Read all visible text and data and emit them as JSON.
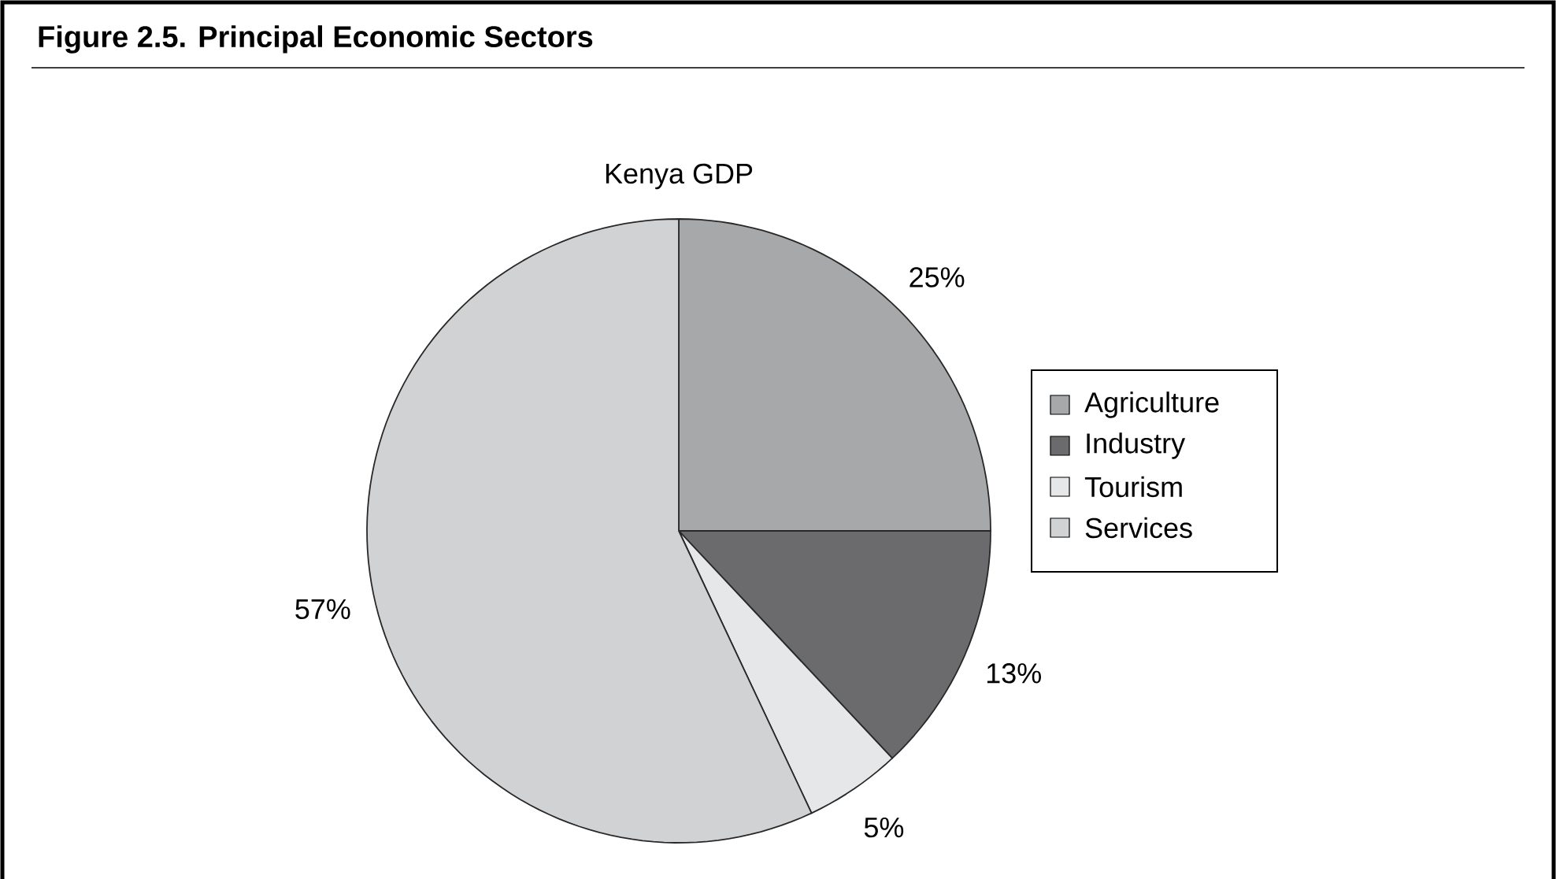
{
  "chart_data": {
    "type": "pie",
    "title": "Figure 2.5.  Principal Economic Sectors",
    "subtitle": "Kenya GDP",
    "categories": [
      "Agriculture",
      "Industry",
      "Tourism",
      "Services"
    ],
    "values": [
      25,
      13,
      5,
      57
    ],
    "colors": [
      "#a7a8aa",
      "#6b6b6d",
      "#e6e7e8",
      "#d1d2d4"
    ],
    "value_labels": [
      "25%",
      "13%",
      "5%",
      "57%"
    ],
    "legend": "right"
  }
}
